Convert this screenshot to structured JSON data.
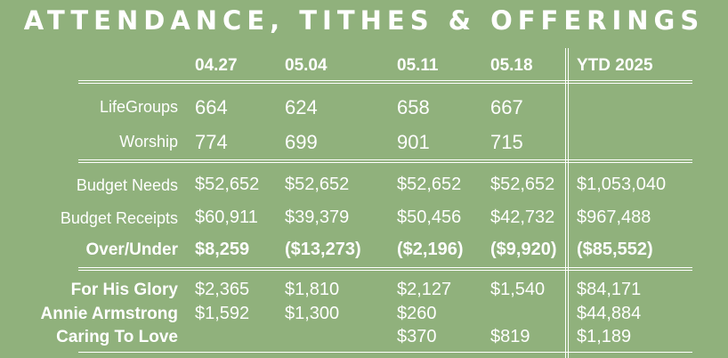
{
  "title": "ATTENDANCE, TITHES & OFFERINGS",
  "columns": [
    "04.27",
    "05.04",
    "05.11",
    "05.18",
    "YTD 2025"
  ],
  "attendance": {
    "lifegroups": {
      "label": "LifeGroups",
      "values": [
        "664",
        "624",
        "658",
        "667",
        ""
      ]
    },
    "worship": {
      "label": "Worship",
      "values": [
        "774",
        "699",
        "901",
        "715",
        ""
      ]
    }
  },
  "budget": {
    "needs": {
      "label": "Budget Needs",
      "values": [
        "$52,652",
        "$52,652",
        "$52,652",
        "$52,652",
        "$1,053,040"
      ]
    },
    "receipts": {
      "label": "Budget Receipts",
      "values": [
        "$60,911",
        "$39,379",
        "$50,456",
        "$42,732",
        "$967,488"
      ]
    },
    "over_under": {
      "label": "Over/Under",
      "values": [
        "$8,259",
        "($13,273)",
        "($2,196)",
        "($9,920)",
        "($85,552)"
      ]
    }
  },
  "offerings": {
    "for_his_glory": {
      "label": "For His Glory",
      "values": [
        "$2,365",
        "$1,810",
        "$2,127",
        "$1,540",
        "$84,171"
      ]
    },
    "annie_armstrong": {
      "label": "Annie Armstrong",
      "values": [
        "$1,592",
        "$1,300",
        "$260",
        "",
        "$44,884"
      ]
    },
    "caring_to_love": {
      "label": "Caring To Love",
      "values": [
        "",
        "",
        "$370",
        "$819",
        "$1,189"
      ]
    }
  },
  "colors": {
    "background": "#90b17c",
    "text": "#ffffff"
  }
}
